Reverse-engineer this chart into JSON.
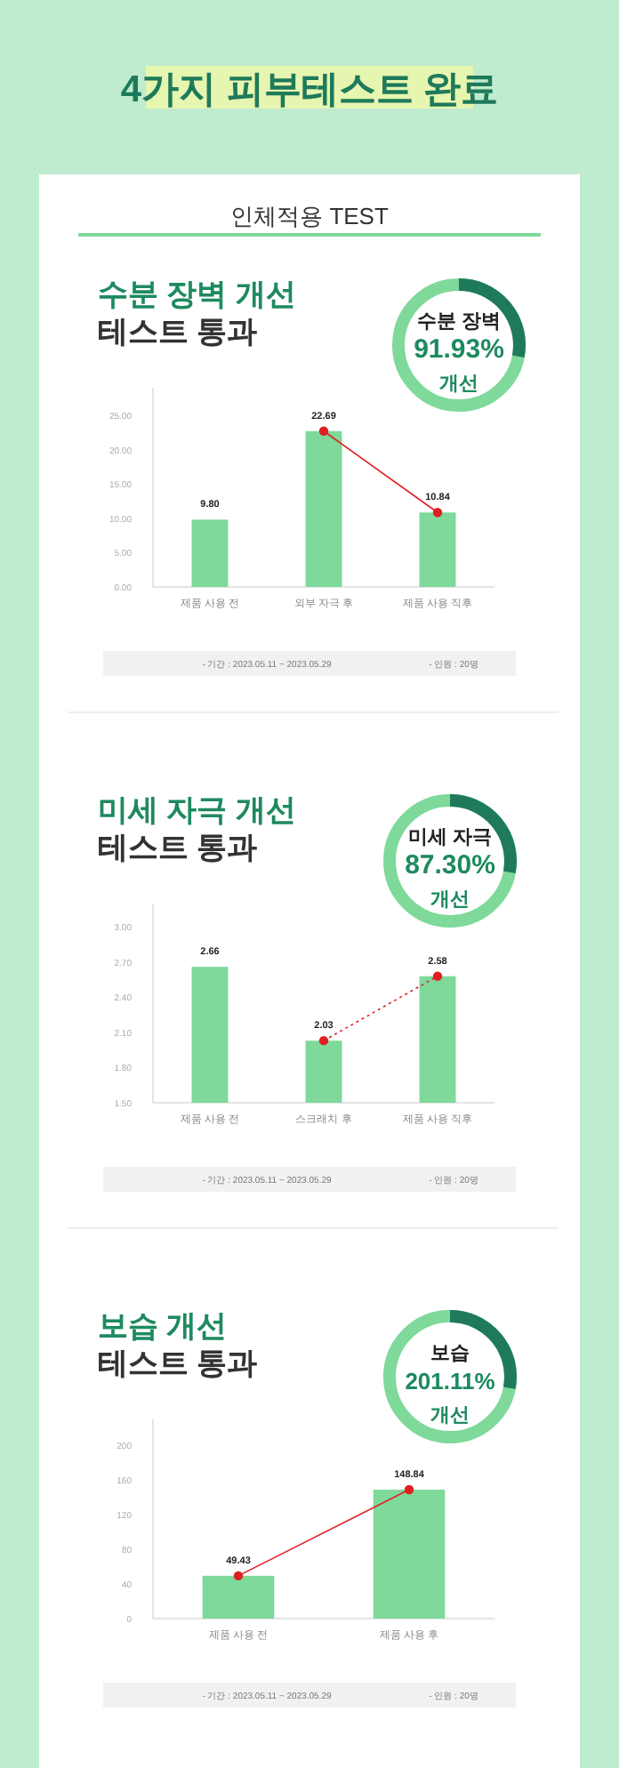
{
  "chart_data": [
    {
      "type": "bar",
      "title": "수분 장벽 개선",
      "subtitle": "테스트 통과",
      "categories": [
        "제품 사용 전",
        "외부 자극 후",
        "제품 사용 직후"
      ],
      "series": [
        {
          "color": "#7ed99a",
          "values": [
            9.8,
            22.69,
            10.84
          ],
          "value_labels": [
            "9.80",
            "22.69",
            "10.84"
          ]
        },
        {
          "type": "line",
          "color": "#e02020",
          "values": [
            null,
            22.69,
            10.84
          ],
          "marker": "circle",
          "line_style": "solid"
        }
      ],
      "ylim": [
        0,
        29
      ],
      "yticks": [
        {
          "value": 0,
          "label": "0.00"
        },
        {
          "value": 5,
          "label": "5.00"
        },
        {
          "value": 10,
          "label": "10.00"
        },
        {
          "value": 15,
          "label": "15.00"
        },
        {
          "value": 20,
          "label": "20.00"
        },
        {
          "value": 25,
          "label": "25.00"
        }
      ],
      "grid": false,
      "annotations": [
        "4가지 피부테스트 완료",
        "인체적용 TEST",
        "수분 장벽",
        "91.93%",
        "개선",
        "- 기간 : 2023.05.11 ~ 2023.05.29",
        "- 인원 : 20명"
      ]
    },
    {
      "type": "bar",
      "title": "미세 자극 개선",
      "subtitle": "테스트 통과",
      "categories": [
        "제품 사용 전",
        "스크래치 후",
        "제품 사용 직후"
      ],
      "series": [
        {
          "color": "#7ed99a",
          "values": [
            2.66,
            2.03,
            2.58
          ],
          "value_labels": [
            "2.66",
            "2.03",
            "2.58"
          ]
        },
        {
          "type": "line",
          "color": "#e02020",
          "values": [
            null,
            2.03,
            2.58
          ],
          "marker": "circle",
          "line_style": "dotted"
        }
      ],
      "ylim": [
        1.5,
        3.2
      ],
      "yticks": [
        {
          "value": 1.5,
          "label": "1.50"
        },
        {
          "value": 1.8,
          "label": "1.80"
        },
        {
          "value": 2.1,
          "label": "2.10"
        },
        {
          "value": 2.4,
          "label": "2.40"
        },
        {
          "value": 2.7,
          "label": "2.70"
        },
        {
          "value": 3.0,
          "label": "3.00"
        }
      ],
      "grid": false,
      "annotations": [
        "미세 자극",
        "87.30%",
        "개선",
        "- 기간 : 2023.05.11 ~ 2023.05.29",
        "- 인원 : 20명"
      ]
    },
    {
      "type": "bar",
      "title": "보습 개선",
      "subtitle": "테스트 통과",
      "categories": [
        "제품 사용 전",
        "제품 사용 후"
      ],
      "series": [
        {
          "color": "#7ed99a",
          "values": [
            49.43,
            148.84
          ],
          "value_labels": [
            "49.43",
            "148.84"
          ]
        },
        {
          "type": "line",
          "color": "#e02020",
          "values": [
            49.43,
            148.84
          ],
          "marker": "circle",
          "line_style": "solid"
        }
      ],
      "ylim": [
        0,
        230
      ],
      "yticks": [
        0,
        40,
        80,
        120,
        160,
        200
      ],
      "grid": false,
      "annotations": [
        "보습",
        "201.11%",
        "개선",
        "- 기간 : 2023.05.11 ~ 2023.05.29",
        "- 인원 : 20명"
      ]
    }
  ]
}
